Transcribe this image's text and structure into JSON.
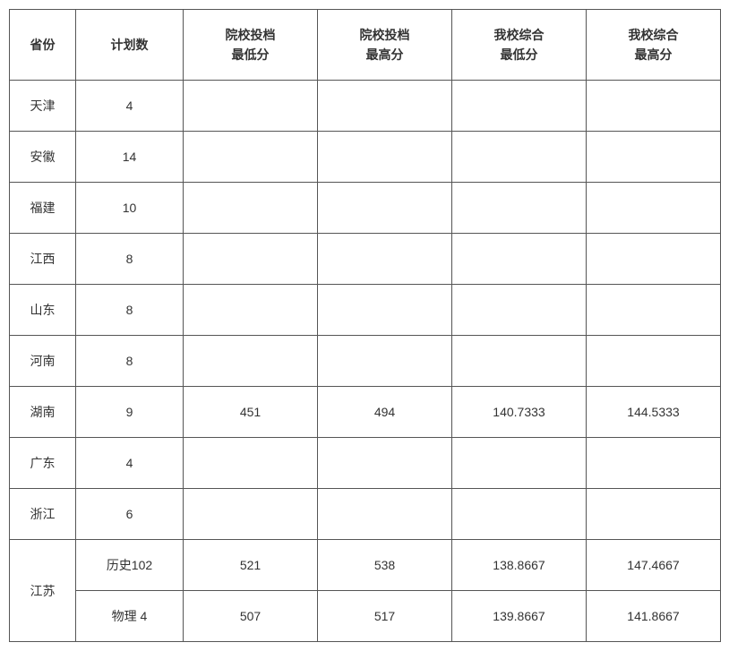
{
  "table": {
    "headers": {
      "province": "省份",
      "plan": "计划数",
      "col3_l1": "院校投档",
      "col3_l2": "最低分",
      "col4_l1": "院校投档",
      "col4_l2": "最高分",
      "col5_l1": "我校综合",
      "col5_l2": "最低分",
      "col6_l1": "我校综合",
      "col6_l2": "最高分"
    },
    "rows": [
      {
        "province": "天津",
        "plan": "4",
        "c3": "",
        "c4": "",
        "c5": "",
        "c6": ""
      },
      {
        "province": "安徽",
        "plan": "14",
        "c3": "",
        "c4": "",
        "c5": "",
        "c6": ""
      },
      {
        "province": "福建",
        "plan": "10",
        "c3": "",
        "c4": "",
        "c5": "",
        "c6": ""
      },
      {
        "province": "江西",
        "plan": "8",
        "c3": "",
        "c4": "",
        "c5": "",
        "c6": ""
      },
      {
        "province": "山东",
        "plan": "8",
        "c3": "",
        "c4": "",
        "c5": "",
        "c6": ""
      },
      {
        "province": "河南",
        "plan": "8",
        "c3": "",
        "c4": "",
        "c5": "",
        "c6": ""
      },
      {
        "province": "湖南",
        "plan": "9",
        "c3": "451",
        "c4": "494",
        "c5": "140.7333",
        "c6": "144.5333"
      },
      {
        "province": "广东",
        "plan": "4",
        "c3": "",
        "c4": "",
        "c5": "",
        "c6": ""
      },
      {
        "province": "浙江",
        "plan": "6",
        "c3": "",
        "c4": "",
        "c5": "",
        "c6": ""
      }
    ],
    "jiangsu": {
      "province": "江苏",
      "sub": [
        {
          "plan": "历史102",
          "c3": "521",
          "c4": "538",
          "c5": "138.8667",
          "c6": "147.4667"
        },
        {
          "plan": "物理 4",
          "c3": "507",
          "c4": "517",
          "c5": "139.8667",
          "c6": "141.8667"
        }
      ]
    }
  },
  "style": {
    "border_color": "#555555",
    "bg_color": "#ffffff",
    "text_color": "#333333",
    "font_size": 14,
    "header_font_weight": "bold"
  }
}
